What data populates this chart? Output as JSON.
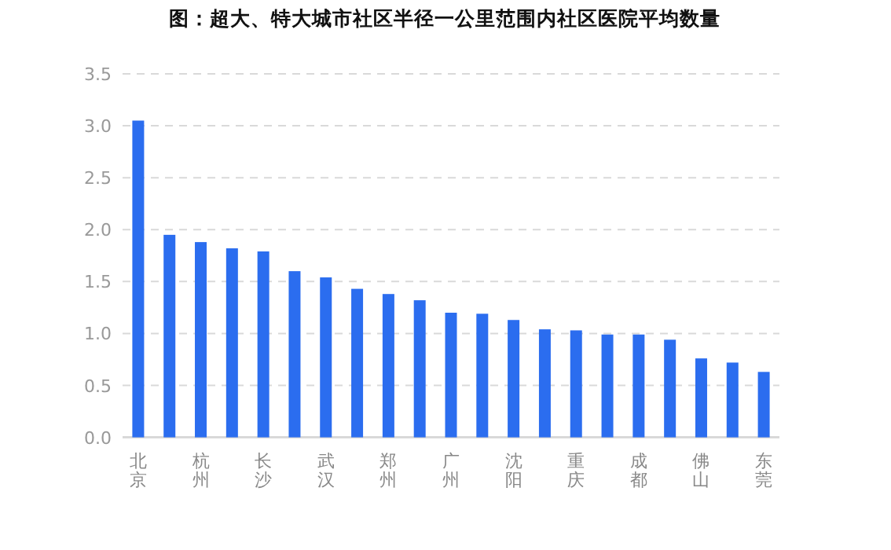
{
  "chart_data": {
    "type": "bar",
    "title": "图：超大、特大城市社区半径一公里范围内社区医院平均数量",
    "categories": [
      "北京",
      null,
      "杭州",
      null,
      "长沙",
      null,
      "武汉",
      null,
      "郑州",
      null,
      "广州",
      null,
      "沈阳",
      null,
      "重庆",
      null,
      "成都",
      null,
      "佛山",
      null,
      "东莞"
    ],
    "values": [
      3.05,
      1.95,
      1.88,
      1.82,
      1.79,
      1.6,
      1.54,
      1.43,
      1.38,
      1.32,
      1.2,
      1.19,
      1.13,
      1.04,
      1.03,
      0.99,
      0.99,
      0.94,
      0.76,
      0.72,
      0.63
    ],
    "color": "#2b6def",
    "ylim": [
      0,
      3.5
    ],
    "yticks": [
      {
        "value": 0,
        "label": "0.0"
      },
      {
        "value": 0.5,
        "label": "0.5"
      },
      {
        "value": 1,
        "label": "1.0"
      },
      {
        "value": 1.5,
        "label": "1.5"
      },
      {
        "value": 2,
        "label": "2.0"
      },
      {
        "value": 2.5,
        "label": "2.5"
      },
      {
        "value": 3,
        "label": "3.0"
      },
      {
        "value": 3.5,
        "label": "3.5"
      }
    ],
    "grid": "y"
  }
}
